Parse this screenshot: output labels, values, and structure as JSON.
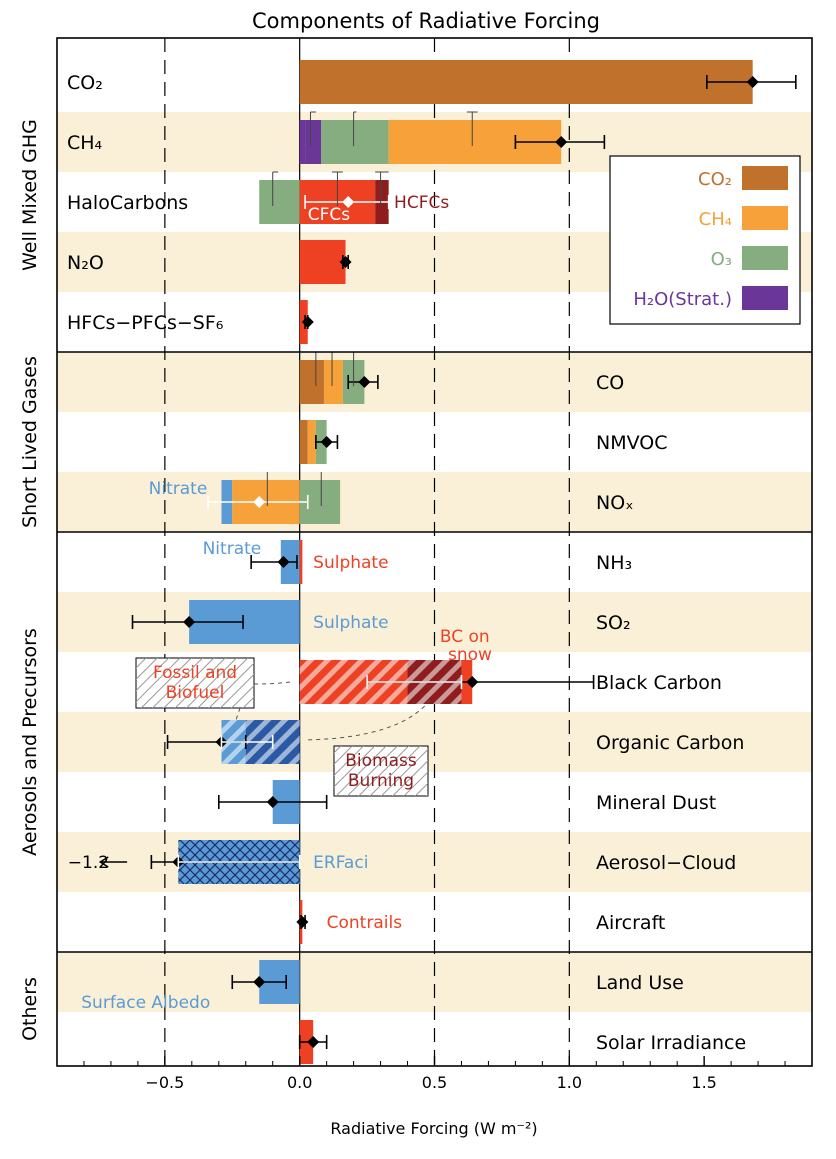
{
  "chart_data": {
    "type": "bar",
    "title": "Components of Radiative Forcing",
    "xlabel": "Radiative Forcing (W m⁻²)",
    "xlim": [
      -0.9,
      1.9
    ],
    "xticks": [
      {
        "value": -0.5,
        "label": "−0.5"
      },
      {
        "value": 0.0,
        "label": "0.0"
      },
      {
        "value": 0.5,
        "label": "0.5"
      },
      {
        "value": 1.0,
        "label": "1.0"
      },
      {
        "value": 1.5,
        "label": "1.5"
      }
    ],
    "dashed_lines_at": [
      -0.5,
      0.5,
      1.0
    ],
    "colors": {
      "CO2": "#c0722d",
      "CH4": "#f7a13a",
      "O3": "#86ad80",
      "H2O": "#6a3798",
      "red": "#ee4123",
      "darkred": "#8f1d1d",
      "blue": "#5b9bd5",
      "darkblue": "#2a5aa6",
      "stripe": "#faf0d7"
    },
    "groups": [
      {
        "label": "Well Mixed GHG",
        "rows": [
          0,
          4
        ]
      },
      {
        "label": "Short Lived Gases",
        "rows": [
          5,
          7
        ]
      },
      {
        "label": "Aerosols and Precursors",
        "rows": [
          8,
          14
        ]
      },
      {
        "label": "Others",
        "rows": [
          15,
          16
        ]
      }
    ],
    "legend": [
      {
        "label": "CO₂",
        "color": "CO2"
      },
      {
        "label": "CH₄",
        "color": "CH4"
      },
      {
        "label": "O₃",
        "color": "O3"
      },
      {
        "label": "H₂O(Strat.)",
        "color": "H2O"
      }
    ],
    "rows": [
      {
        "label": "CO₂",
        "side": "left",
        "stripe": false,
        "segments": [
          {
            "x0": 0,
            "x1": 1.68,
            "color": "CO2"
          }
        ],
        "errorbars": [
          {
            "value": 1.68,
            "low": 1.51,
            "high": 1.84,
            "style": "total"
          }
        ]
      },
      {
        "label": "CH₄",
        "side": "left",
        "stripe": true,
        "segments": [
          {
            "x0": 0,
            "x1": 0.02,
            "color": "H2O"
          },
          {
            "x0": 0.02,
            "x1": 0.08,
            "color": "H2O"
          },
          {
            "x0": 0.08,
            "x1": 0.33,
            "color": "O3"
          },
          {
            "x0": 0.33,
            "x1": 0.97,
            "color": "CH4"
          }
        ],
        "errorbars": [
          {
            "value": 0.97,
            "low": 0.8,
            "high": 1.13,
            "style": "total"
          },
          {
            "value": 0.64,
            "low": 0.62,
            "high": 0.66,
            "style": "comp"
          },
          {
            "value": 0.2,
            "low": 0.2,
            "high": 0.21,
            "style": "comp"
          },
          {
            "value": 0.04,
            "low": 0.04,
            "high": 0.06,
            "style": "comp"
          }
        ]
      },
      {
        "label": "HaloCarbons",
        "side": "left",
        "stripe": false,
        "segments": [
          {
            "x0": -0.15,
            "x1": 0,
            "color": "O3"
          },
          {
            "x0": 0,
            "x1": 0.28,
            "color": "red"
          },
          {
            "x0": 0.28,
            "x1": 0.33,
            "color": "darkred"
          }
        ],
        "errorbars": [
          {
            "value": 0.18,
            "low": 0.02,
            "high": 0.33,
            "style": "whitetotal"
          },
          {
            "value": -0.1,
            "low": -0.1,
            "high": -0.08,
            "style": "comp"
          },
          {
            "value": 0.14,
            "low": 0.12,
            "high": 0.16,
            "style": "comp"
          },
          {
            "value": 0.3,
            "low": 0.28,
            "high": 0.33,
            "style": "comp"
          }
        ]
      },
      {
        "label": "N₂O",
        "side": "left",
        "stripe": true,
        "segments": [
          {
            "x0": 0,
            "x1": 0.17,
            "color": "red"
          }
        ],
        "errorbars": [
          {
            "value": 0.17,
            "low": 0.16,
            "high": 0.18,
            "style": "total"
          }
        ]
      },
      {
        "label": "HFCs−PFCs−SF₆",
        "side": "left",
        "stripe": false,
        "segments": [
          {
            "x0": 0,
            "x1": 0.03,
            "color": "red"
          }
        ],
        "errorbars": [
          {
            "value": 0.03,
            "low": 0.02,
            "high": 0.03,
            "style": "total"
          }
        ]
      },
      {
        "label": "CO",
        "side": "right",
        "stripe": true,
        "segments": [
          {
            "x0": 0,
            "x1": 0.09,
            "color": "CO2"
          },
          {
            "x0": 0.09,
            "x1": 0.16,
            "color": "CH4"
          },
          {
            "x0": 0.16,
            "x1": 0.24,
            "color": "O3"
          }
        ],
        "errorbars": [
          {
            "value": 0.24,
            "low": 0.18,
            "high": 0.29,
            "style": "total"
          },
          {
            "value": 0.06,
            "low": 0.05,
            "high": 0.06,
            "style": "comp"
          },
          {
            "value": 0.12,
            "low": 0.1,
            "high": 0.13,
            "style": "comp"
          },
          {
            "value": 0.2,
            "low": 0.19,
            "high": 0.2,
            "style": "comp"
          }
        ]
      },
      {
        "label": "NMVOC",
        "side": "right",
        "stripe": false,
        "segments": [
          {
            "x0": 0,
            "x1": 0.03,
            "color": "CO2"
          },
          {
            "x0": 0.03,
            "x1": 0.06,
            "color": "CH4"
          },
          {
            "x0": 0.06,
            "x1": 0.1,
            "color": "O3"
          }
        ],
        "errorbars": [
          {
            "value": 0.1,
            "low": 0.06,
            "high": 0.14,
            "style": "total"
          }
        ]
      },
      {
        "label": "NOₓ",
        "side": "right",
        "stripe": true,
        "segments": [
          {
            "x0": -0.29,
            "x1": -0.25,
            "color": "blue"
          },
          {
            "x0": -0.25,
            "x1": 0,
            "color": "CH4"
          },
          {
            "x0": 0,
            "x1": 0.15,
            "color": "O3"
          }
        ],
        "errorbars": [
          {
            "value": -0.15,
            "low": -0.34,
            "high": 0.03,
            "style": "whitetotal"
          },
          {
            "value": -0.12,
            "low": -0.12,
            "high": -0.12,
            "style": "comp"
          },
          {
            "value": 0.08,
            "low": 0.08,
            "high": 0.08,
            "style": "comp"
          }
        ]
      },
      {
        "label": "NH₃",
        "side": "right",
        "stripe": false,
        "segments": [
          {
            "x0": -0.07,
            "x1": 0,
            "color": "blue"
          },
          {
            "x0": 0,
            "x1": 0.01,
            "color": "red"
          }
        ],
        "errorbars": [
          {
            "value": -0.06,
            "low": -0.18,
            "high": -0.01,
            "style": "total"
          }
        ]
      },
      {
        "label": "SO₂",
        "side": "right",
        "stripe": true,
        "segments": [
          {
            "x0": -0.41,
            "x1": 0,
            "color": "blue"
          }
        ],
        "errorbars": [
          {
            "value": -0.41,
            "low": -0.62,
            "high": -0.21,
            "style": "total"
          }
        ]
      },
      {
        "label": "Black Carbon",
        "side": "right",
        "stripe": false,
        "segments": [
          {
            "x0": 0,
            "x1": 0.4,
            "color": "red",
            "hatch": "diag"
          },
          {
            "x0": 0.4,
            "x1": 0.6,
            "color": "darkred",
            "hatch": "diag"
          },
          {
            "x0": 0.6,
            "x1": 0.64,
            "color": "red"
          }
        ],
        "errorbars": [
          {
            "value": 0.64,
            "low": 0.25,
            "high": 1.09,
            "style": "total"
          },
          {
            "value": 0.4,
            "low": 0.25,
            "high": 0.6,
            "style": "white"
          }
        ]
      },
      {
        "label": "Organic Carbon",
        "side": "right",
        "stripe": true,
        "segments": [
          {
            "x0": -0.29,
            "x1": -0.2,
            "color": "blue",
            "hatch": "diag"
          },
          {
            "x0": -0.2,
            "x1": 0,
            "color": "darkblue",
            "hatch": "diag"
          }
        ],
        "errorbars": [
          {
            "value": -0.29,
            "low": -0.49,
            "high": -0.2,
            "style": "total"
          },
          {
            "value": -0.2,
            "low": -0.29,
            "high": -0.1,
            "style": "white"
          }
        ]
      },
      {
        "label": "Mineral Dust",
        "side": "right",
        "stripe": false,
        "segments": [
          {
            "x0": -0.1,
            "x1": 0,
            "color": "blue"
          }
        ],
        "errorbars": [
          {
            "value": -0.1,
            "low": -0.3,
            "high": 0.1,
            "style": "total"
          }
        ]
      },
      {
        "label": "Aerosol−Cloud",
        "side": "right",
        "stripe": true,
        "segments": [
          {
            "x0": -0.45,
            "x1": 0,
            "color": "blue",
            "hatch": "cross"
          }
        ],
        "errorbars": [
          {
            "value": -0.45,
            "low": -0.55,
            "high": 0,
            "style": "total"
          },
          {
            "value": -0.45,
            "low": -0.45,
            "high": 0,
            "style": "white"
          }
        ]
      },
      {
        "label": "Aircraft",
        "side": "right",
        "stripe": false,
        "segments": [
          {
            "x0": 0,
            "x1": 0.01,
            "color": "red"
          }
        ],
        "errorbars": [
          {
            "value": 0.01,
            "low": 0.005,
            "high": 0.02,
            "style": "total"
          }
        ]
      },
      {
        "label": "Land Use",
        "side": "right",
        "stripe": true,
        "segments": [
          {
            "x0": -0.15,
            "x1": 0,
            "color": "blue"
          }
        ],
        "errorbars": [
          {
            "value": -0.15,
            "low": -0.25,
            "high": -0.05,
            "style": "total"
          }
        ]
      },
      {
        "label": "Solar Irradiance",
        "side": "right",
        "stripe": false,
        "segments": [
          {
            "x0": 0,
            "x1": 0.05,
            "color": "red"
          }
        ],
        "errorbars": [
          {
            "value": 0.05,
            "low": 0.0,
            "high": 0.1,
            "style": "total"
          }
        ]
      }
    ],
    "annotations": [
      {
        "row": 1,
        "text": "",
        "x": 0
      },
      {
        "row": 2,
        "text": "HCFCs",
        "x": 0.35,
        "color": "darkred",
        "size": 15
      },
      {
        "row": 2,
        "text": "CFCs",
        "x": 0.03,
        "color": "white",
        "size": 13,
        "dy": 12
      },
      {
        "row": 7,
        "text": "Nitrate",
        "x": -0.56,
        "color": "blue",
        "dy": -14
      },
      {
        "row": 8,
        "text": "Nitrate",
        "x": -0.36,
        "color": "blue",
        "dy": -14
      },
      {
        "row": 8,
        "text": "Sulphate",
        "x": 0.05,
        "color": "red"
      },
      {
        "row": 9,
        "text": "Sulphate",
        "x": 0.05,
        "color": "blue"
      },
      {
        "row": 10,
        "text": "BC on",
        "x": 0.52,
        "color": "red",
        "dy": -46
      },
      {
        "row": 10,
        "text": "snow",
        "x": 0.55,
        "color": "red",
        "dy": -28
      },
      {
        "row": 13,
        "text": "ERFaci",
        "x": 0.05,
        "color": "blue"
      },
      {
        "row": 13,
        "text": "−1.2",
        "x": -0.86,
        "color": "black",
        "size": 16
      },
      {
        "row": 14,
        "text": "Contrails",
        "x": 0.1,
        "color": "red"
      },
      {
        "row": 15,
        "text": "Surface Albedo",
        "x": -0.81,
        "color": "blue",
        "dy": 20
      }
    ],
    "callouts": [
      {
        "lines": [
          "Fossil and",
          "Biofuel"
        ],
        "color": "red"
      },
      {
        "lines": [
          "Biomass",
          "Burning"
        ],
        "color": "darkred"
      }
    ]
  }
}
